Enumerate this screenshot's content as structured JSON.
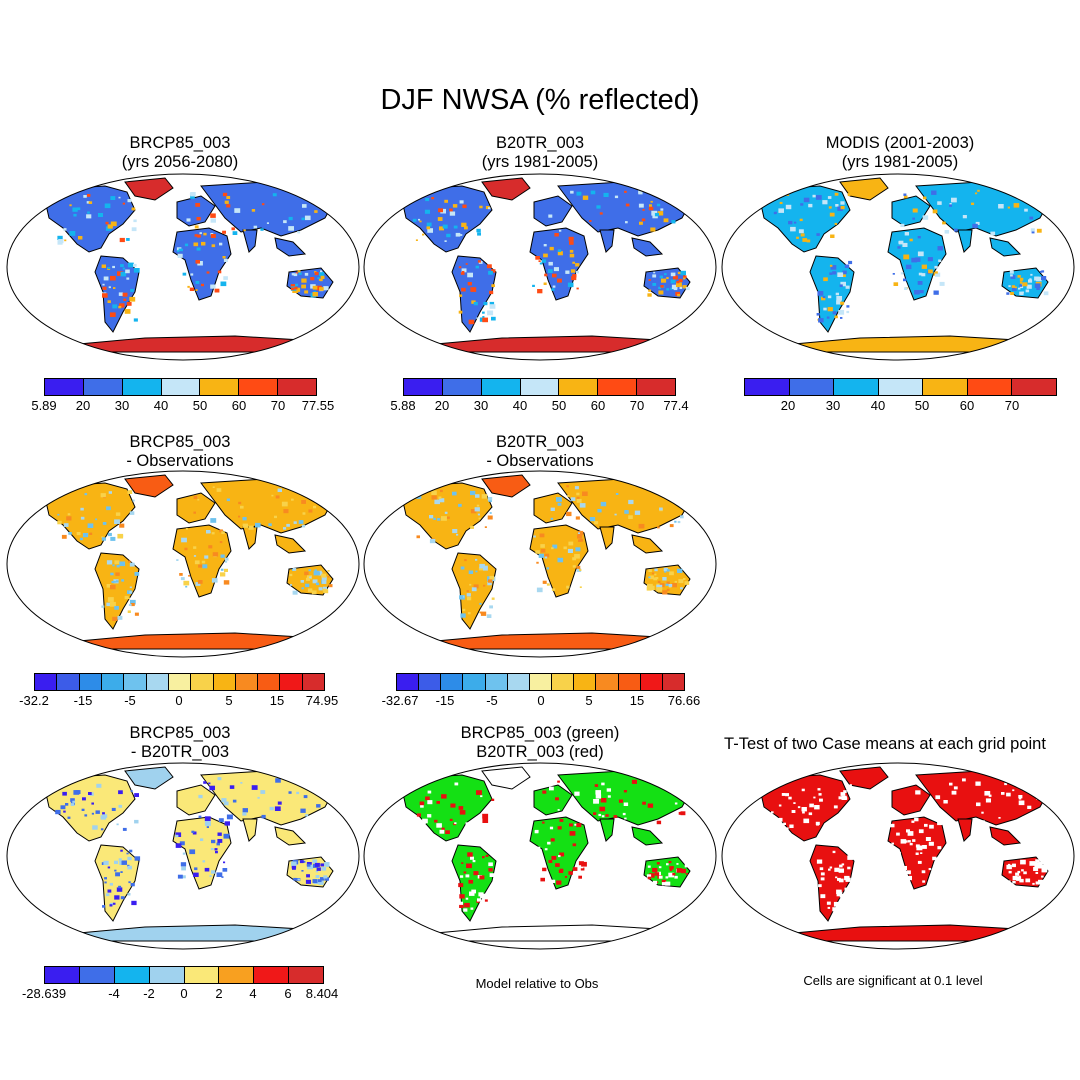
{
  "title": "DJF NWSA (% reflected)",
  "colors": {
    "abs": [
      "#3a1ef0",
      "#3f6ee8",
      "#14b4ee",
      "#c5e6f8",
      "#f8b414",
      "#ff4b14",
      "#d72c2c"
    ],
    "diff": [
      "#3a1ef0",
      "#3c5ce8",
      "#2d8ce8",
      "#3cacea",
      "#6ec2ee",
      "#a8d8f0",
      "#f8f0a0",
      "#f8d24a",
      "#f8b414",
      "#f88a20",
      "#f85c14",
      "#f01818",
      "#d72c2c"
    ],
    "change": [
      "#3a1ef0",
      "#3f6ee8",
      "#14b4ee",
      "#a0d2ee",
      "#fae878",
      "#f8a020",
      "#f01818",
      "#d72c2c"
    ],
    "land_abs": "#3f6ee8",
    "land_diff": "#f8b414",
    "land_change": "#fae878",
    "ice": "#d72c2c",
    "sig_green": "#14e014",
    "sig_red": "#e81010"
  },
  "panels": [
    {
      "id": "p1",
      "title1": "BRCP85_003",
      "title2": "(yrs 2056-2080)",
      "labels": [
        "5.89",
        "20",
        "30",
        "40",
        "50",
        "60",
        "70",
        "77.55"
      ]
    },
    {
      "id": "p2",
      "title1": "B20TR_003",
      "title2": "(yrs 1981-2005)",
      "labels": [
        "5.88",
        "20",
        "30",
        "40",
        "50",
        "60",
        "70",
        "77.4"
      ]
    },
    {
      "id": "p3",
      "title1": "MODIS (2001-2003)",
      "title2": "(yrs 1981-2005)",
      "labels": [
        "20",
        "30",
        "40",
        "50",
        "60",
        "70"
      ]
    },
    {
      "id": "p4",
      "title1": "BRCP85_003",
      "title2": "- Observations",
      "labels": [
        "-32.2",
        "-15",
        "-5",
        "0",
        "5",
        "15",
        "74.95"
      ]
    },
    {
      "id": "p5",
      "title1": "B20TR_003",
      "title2": "- Observations",
      "labels": [
        "-32.67",
        "-15",
        "-5",
        "0",
        "5",
        "15",
        "76.66"
      ]
    },
    {
      "id": "p7",
      "title1": "BRCP85_003",
      "title2": "- B20TR_003",
      "labels": [
        "-28.639",
        "-4",
        "-2",
        "0",
        "2",
        "4",
        "6",
        "8.404"
      ]
    },
    {
      "id": "p8",
      "title1": "BRCP85_003 (green)",
      "title2": "B20TR_003 (red)",
      "caption": "Model relative to Obs"
    },
    {
      "id": "p9",
      "title1": "T-Test of two Case means at each grid point",
      "caption": "Cells are significant at 0.1 level"
    }
  ]
}
